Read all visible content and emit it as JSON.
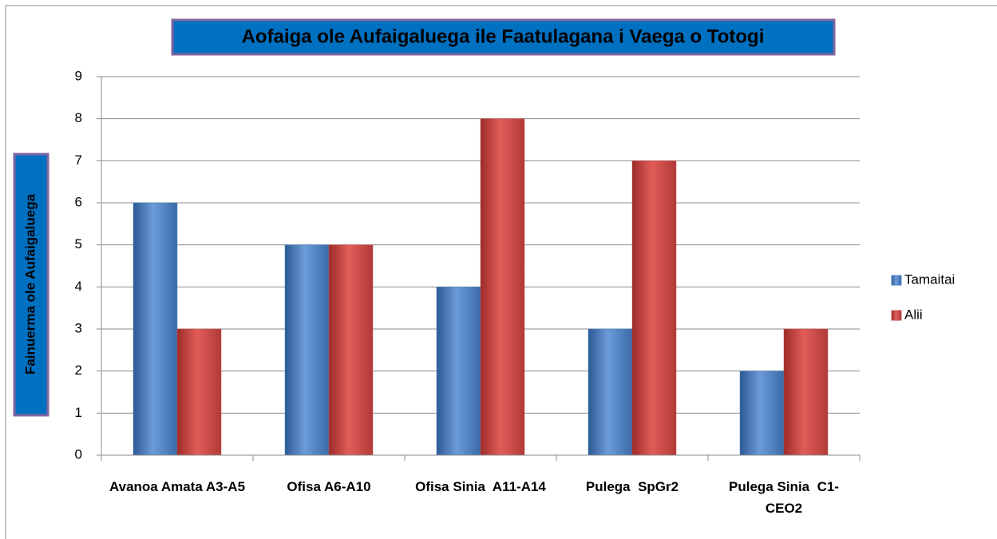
{
  "chart_data": {
    "type": "bar",
    "title": "Aofaiga ole Aufaigaluega ile Faatulagana i Vaega o Totogi",
    "y_label": "Fainuerma ole Aufaigaluega",
    "categories": [
      "Avanoa Amata A3-A5",
      "Ofisa A6-A10",
      "Ofisa Sinia  A11-A14",
      "Pulega  SpGr2",
      "Pulega Sinia  C1-CEO2"
    ],
    "series": [
      {
        "name": "Tamaitai",
        "color": "#4f81bd",
        "values": [
          6,
          5,
          4,
          3,
          2
        ]
      },
      {
        "name": "Alii",
        "color": "#c0504d",
        "values": [
          3,
          5,
          8,
          7,
          3
        ]
      }
    ],
    "ylim": [
      0,
      9
    ],
    "yticks": [
      0,
      1,
      2,
      3,
      4,
      5,
      6,
      7,
      8,
      9
    ],
    "grid": true,
    "legend": "right"
  }
}
